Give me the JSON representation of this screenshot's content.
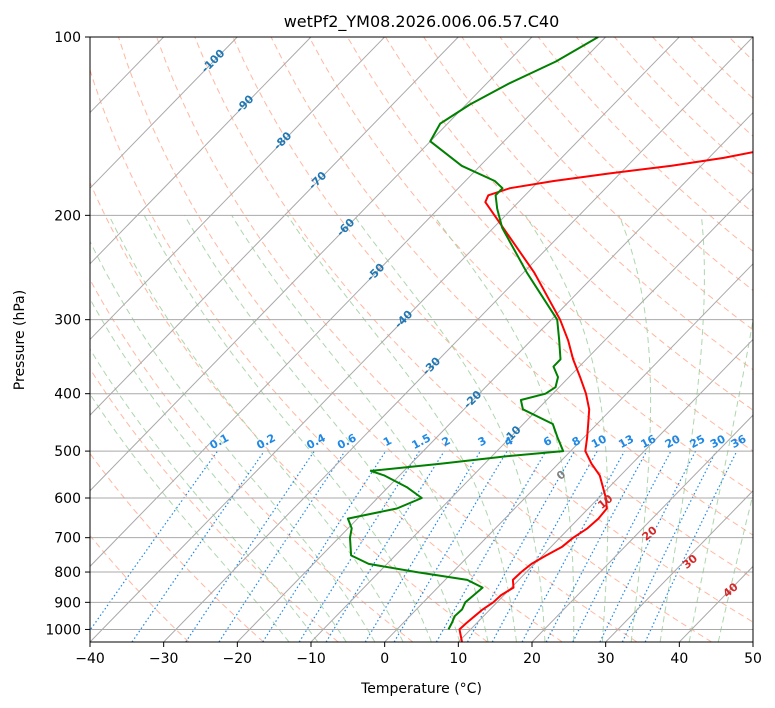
{
  "chart_data": {
    "type": "line",
    "title": "wetPf2_YM08.2026.006.06.57.C40",
    "xlabel": "Temperature (°C)",
    "ylabel": "Pressure (hPa)",
    "xlim": [
      -40,
      50
    ],
    "ylim": [
      1050,
      100
    ],
    "y_scale": "log",
    "grid": true,
    "x_ticks": [
      -40,
      -30,
      -20,
      -10,
      0,
      10,
      20,
      30,
      40,
      50
    ],
    "y_ticks": [
      100,
      200,
      300,
      400,
      500,
      600,
      700,
      800,
      900,
      1000
    ],
    "series": [
      {
        "role": "temperature",
        "color": "#ff0000",
        "points": [
          [
            1050,
            10.5
          ],
          [
            1000,
            8.5
          ],
          [
            975,
            8.6
          ],
          [
            950,
            8.8
          ],
          [
            925,
            9.0
          ],
          [
            900,
            9.5
          ],
          [
            875,
            9.6
          ],
          [
            850,
            10.3
          ],
          [
            825,
            9.2
          ],
          [
            800,
            9.3
          ],
          [
            775,
            9.6
          ],
          [
            750,
            10.5
          ],
          [
            725,
            11.5
          ],
          [
            700,
            11.8
          ],
          [
            675,
            12.5
          ],
          [
            650,
            12.7
          ],
          [
            625,
            12.5
          ],
          [
            600,
            11.0
          ],
          [
            550,
            7.2
          ],
          [
            525,
            4.5
          ],
          [
            500,
            2.0
          ],
          [
            475,
            0.5
          ],
          [
            450,
            -1.2
          ],
          [
            425,
            -3.0
          ],
          [
            400,
            -5.5
          ],
          [
            375,
            -8.5
          ],
          [
            350,
            -11.8
          ],
          [
            325,
            -15.0
          ],
          [
            300,
            -18.8
          ],
          [
            250,
            -28.5
          ],
          [
            200,
            -41.5
          ],
          [
            190,
            -44.5
          ],
          [
            185,
            -45.0
          ],
          [
            180,
            -43.0
          ],
          [
            175,
            -38.0
          ],
          [
            170,
            -31.5
          ],
          [
            165,
            -24.0
          ],
          [
            160,
            -18.0
          ],
          [
            155,
            -13.5
          ],
          [
            150,
            -12.8
          ],
          [
            140,
            -13.8
          ],
          [
            130,
            -16.2
          ],
          [
            120,
            -17.7
          ],
          [
            110,
            -19.7
          ],
          [
            100,
            -21.5
          ]
        ]
      },
      {
        "role": "dewpoint",
        "color": "#008000",
        "points": [
          [
            1000,
            7.0
          ],
          [
            975,
            6.6
          ],
          [
            950,
            6.1
          ],
          [
            925,
            6.2
          ],
          [
            900,
            5.7
          ],
          [
            875,
            5.9
          ],
          [
            850,
            6.1
          ],
          [
            825,
            3.0
          ],
          [
            800,
            -5.0
          ],
          [
            775,
            -12.5
          ],
          [
            750,
            -16.0
          ],
          [
            700,
            -18.5
          ],
          [
            675,
            -19.5
          ],
          [
            650,
            -21.3
          ],
          [
            625,
            -16.0
          ],
          [
            600,
            -14.0
          ],
          [
            575,
            -17.5
          ],
          [
            550,
            -22.0
          ],
          [
            540,
            -24.5
          ],
          [
            525,
            -16.0
          ],
          [
            510,
            -8.0
          ],
          [
            500,
            -1.0
          ],
          [
            475,
            -3.5
          ],
          [
            450,
            -6.0
          ],
          [
            425,
            -12.0
          ],
          [
            410,
            -13.5
          ],
          [
            400,
            -11.0
          ],
          [
            390,
            -10.5
          ],
          [
            375,
            -11.5
          ],
          [
            360,
            -13.5
          ],
          [
            350,
            -13.5
          ],
          [
            325,
            -16.2
          ],
          [
            300,
            -19.2
          ],
          [
            250,
            -29.5
          ],
          [
            210,
            -38.8
          ],
          [
            195,
            -42.0
          ],
          [
            185,
            -44.0
          ],
          [
            180,
            -44.0
          ],
          [
            175,
            -46.0
          ],
          [
            165,
            -52.5
          ],
          [
            150,
            -60.0
          ],
          [
            140,
            -61.0
          ],
          [
            130,
            -59.5
          ],
          [
            120,
            -57.0
          ],
          [
            110,
            -53.5
          ],
          [
            100,
            -51.0
          ]
        ]
      }
    ],
    "isotherm_labels": [
      "-100",
      "-90",
      "-80",
      "-70",
      "-60",
      "-50",
      "-40",
      "-30",
      "-20",
      "-10"
    ],
    "mixing_ratio_labels": [
      "0.1",
      "0.2",
      "0.4",
      "0.6",
      "1",
      "1.5",
      "2",
      "3",
      "4",
      "6",
      "8",
      "10",
      "13",
      "16",
      "20",
      "25",
      "30",
      "36"
    ],
    "moist_adiabat_labels": [
      "0",
      "10",
      "20",
      "30",
      "40"
    ],
    "colors": {
      "temperature": "#ff0000",
      "dewpoint": "#008000",
      "isotherm_label": "#1f77b4",
      "mixing_ratio": "#1e88e5",
      "moist_label_zero": "#808080",
      "moist_label": "#d62728",
      "dry_adiabat": "#ff9977",
      "moist_adiabat": "#99cc99",
      "grid": "#a9a9a9"
    }
  }
}
